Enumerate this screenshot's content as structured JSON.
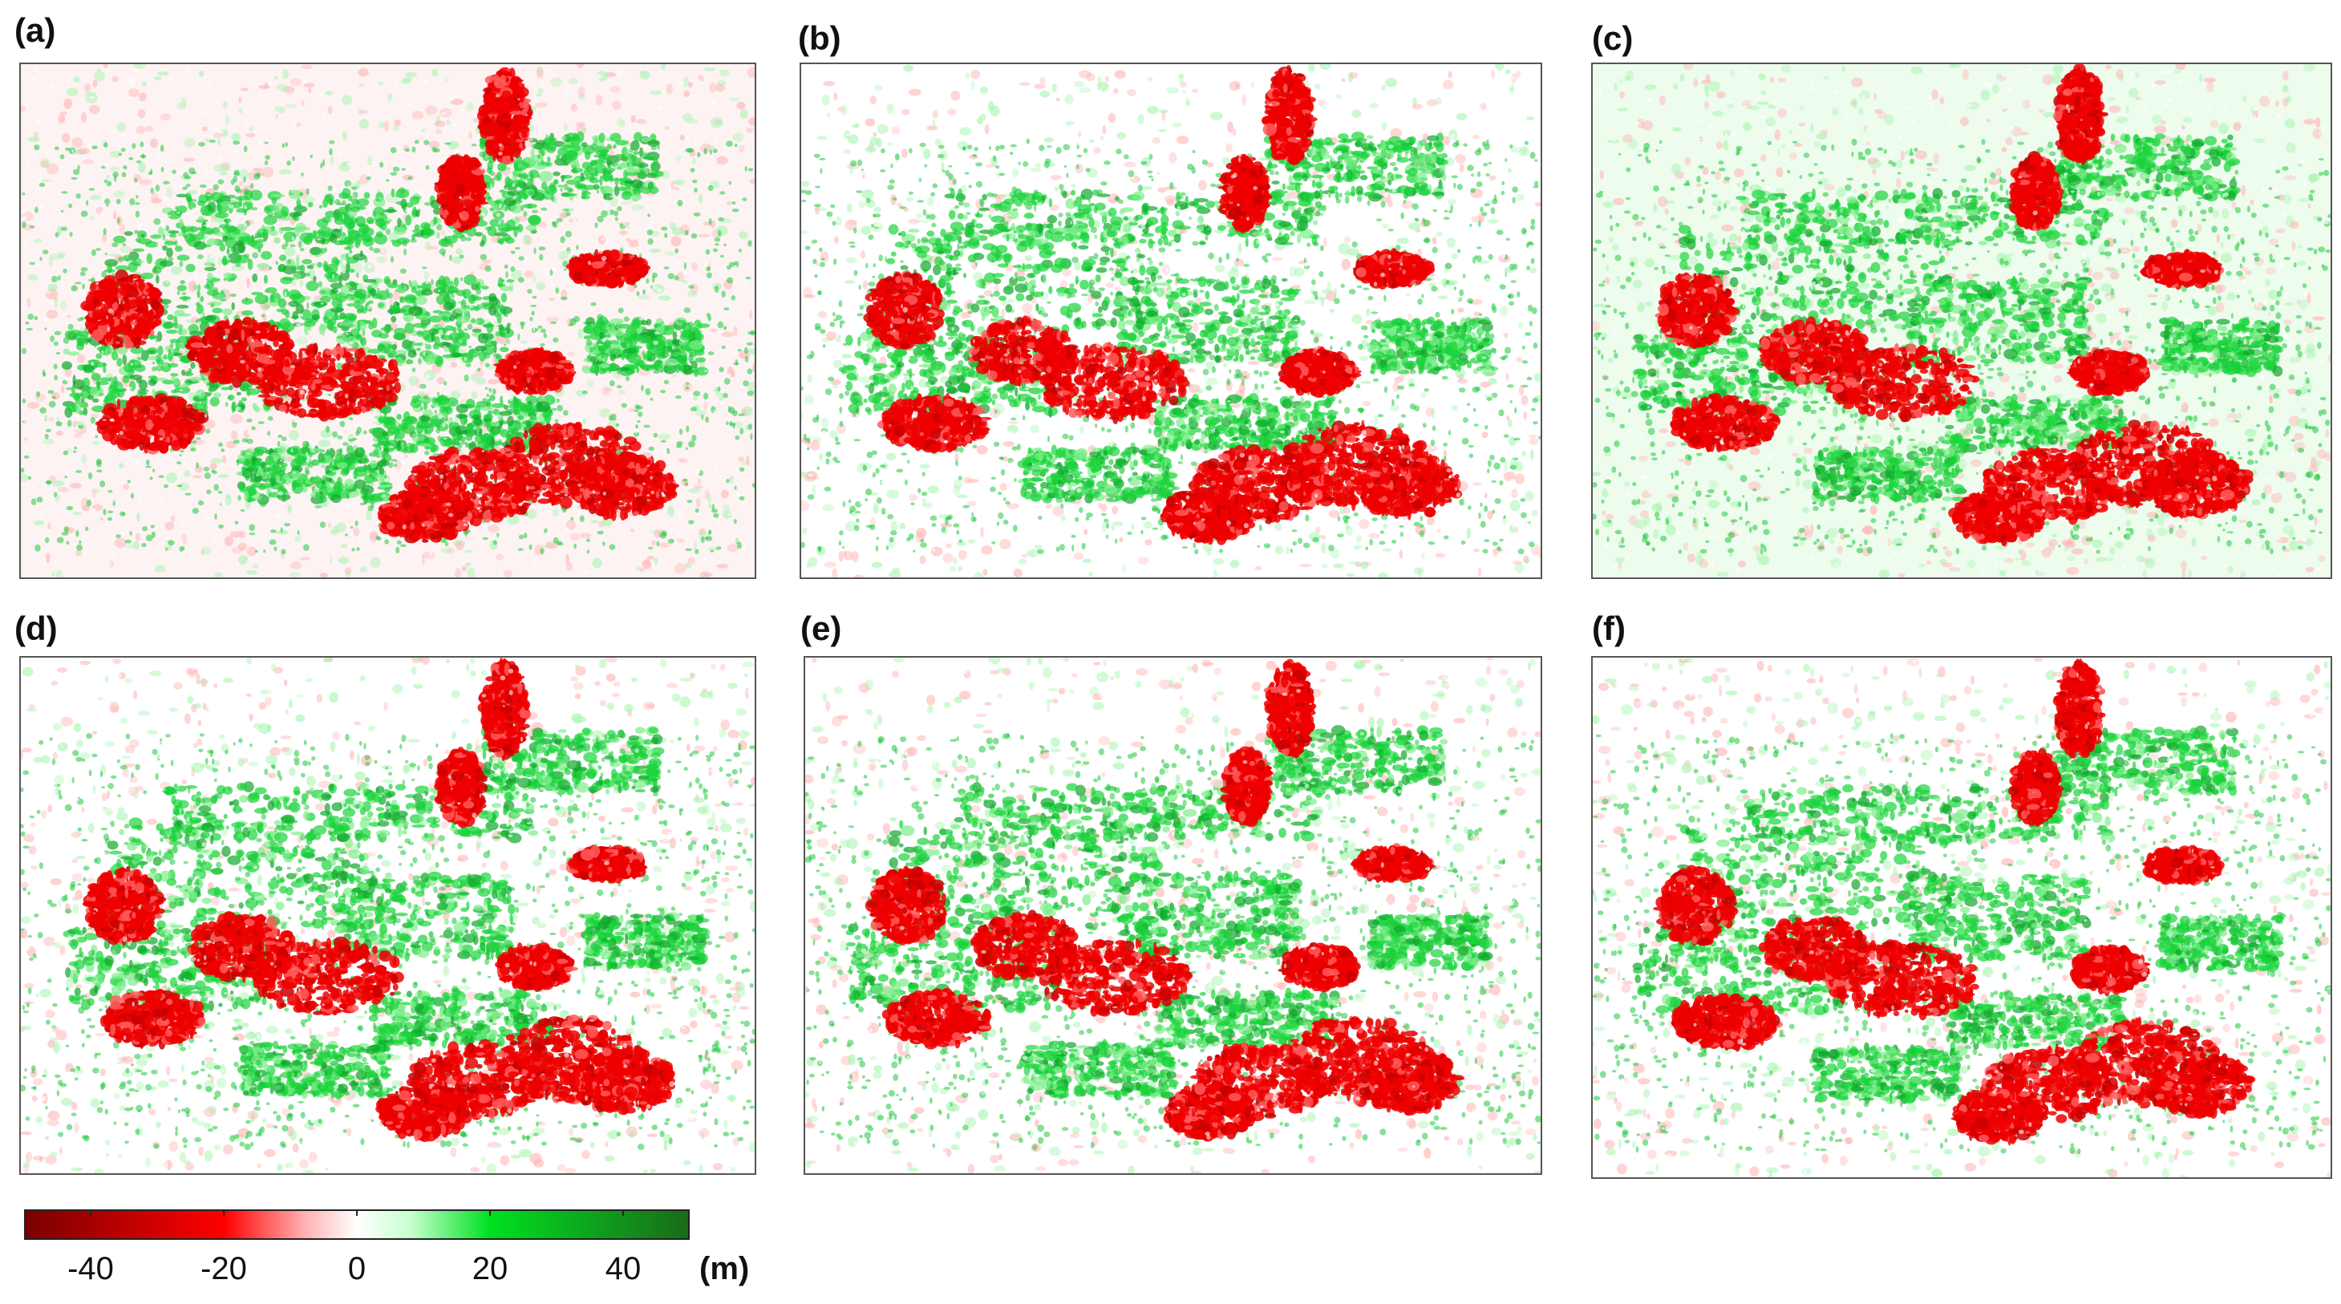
{
  "panels": [
    {
      "label": "(a)"
    },
    {
      "label": "(b)"
    },
    {
      "label": "(c)"
    },
    {
      "label": "(d)"
    },
    {
      "label": "(e)"
    },
    {
      "label": "(f)"
    }
  ],
  "colorbar": {
    "ticks": [
      "-40",
      "-20",
      "0",
      "20",
      "40"
    ],
    "tick_values": [
      -40,
      -20,
      0,
      20,
      40
    ],
    "range": [
      -50,
      50
    ],
    "unit": "(m)",
    "colors": {
      "min": "#7a0000",
      "neg": "#ff0000",
      "zero": "#ffffff",
      "pos": "#00e020",
      "max": "#1a6b1a"
    }
  }
}
